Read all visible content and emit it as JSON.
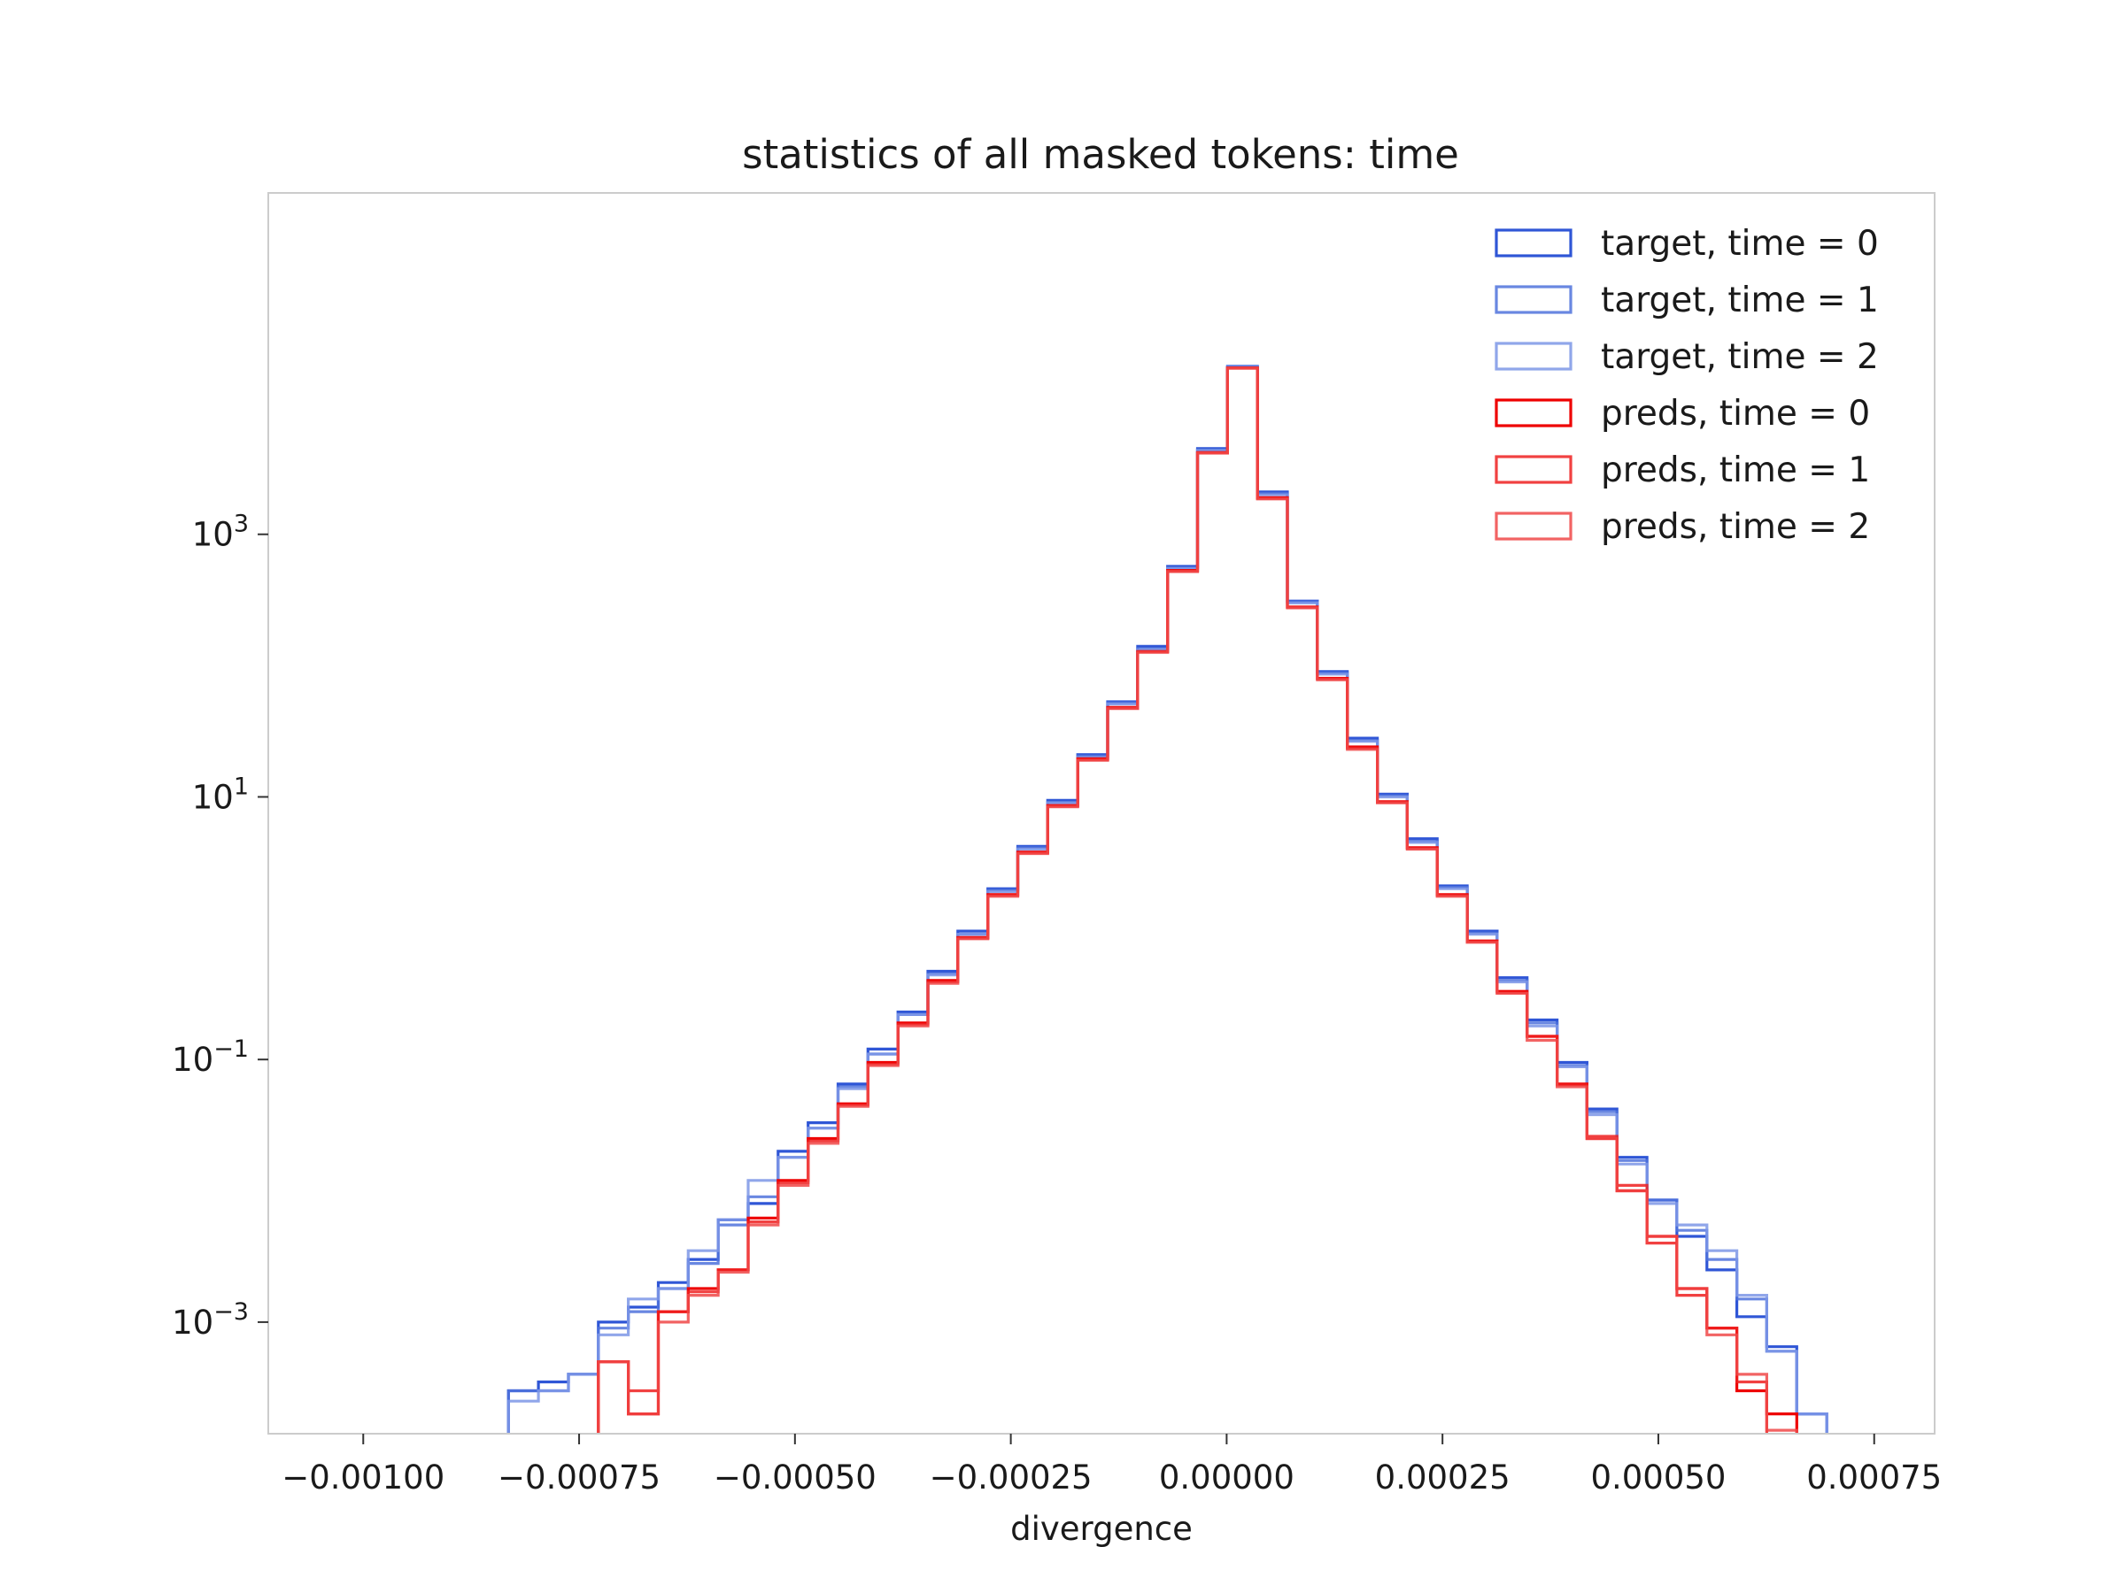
{
  "chart_data": {
    "type": "histogram",
    "title": "statistics of all masked tokens: time",
    "xlabel": "divergence",
    "ylabel": "",
    "yscale": "log",
    "xlim": [
      -0.00111,
      0.00082
    ],
    "ylim_log10": [
      -3.85,
      5.6
    ],
    "grid": false,
    "legend_position": "top-right",
    "x_ticks": [
      {
        "value": -0.001,
        "label": "−0.00100"
      },
      {
        "value": -0.00075,
        "label": "−0.00075"
      },
      {
        "value": -0.0005,
        "label": "−0.00050"
      },
      {
        "value": -0.00025,
        "label": "−0.00025"
      },
      {
        "value": 0,
        "label": "0.00000"
      },
      {
        "value": 0.00025,
        "label": "0.00025"
      },
      {
        "value": 0.0005,
        "label": "0.00050"
      },
      {
        "value": 0.00075,
        "label": "0.00075"
      }
    ],
    "y_ticks": [
      {
        "exp": 3,
        "base": "10",
        "sup": "3"
      },
      {
        "exp": 1,
        "base": "10",
        "sup": "1"
      },
      {
        "exp": -1,
        "base": "10",
        "sup": "−1"
      },
      {
        "exp": -3,
        "base": "10",
        "sup": "−3"
      }
    ],
    "bin_start": -0.00104,
    "bin_width": 3.47e-05,
    "series": [
      {
        "name": "target, time = 0",
        "color": "#2f56d6",
        "alpha": 1.0,
        "values": [
          5e-05,
          0,
          0,
          5e-05,
          5e-05,
          5e-05,
          0.0003,
          0.00035,
          0.0004,
          0.001,
          0.0013,
          0.002,
          0.003,
          0.006,
          0.008,
          0.02,
          0.033,
          0.065,
          0.12,
          0.23,
          0.47,
          0.95,
          2.0,
          4.2,
          9.4,
          21,
          53,
          140,
          570,
          4500,
          19000,
          2100,
          310,
          90,
          28,
          10.5,
          4.8,
          2.1,
          0.95,
          0.42,
          0.2,
          0.095,
          0.042,
          0.018,
          0.0085,
          0.0045,
          0.0025,
          0.0011,
          0.00065,
          0.0002,
          0
        ]
      },
      {
        "name": "target, time = 1",
        "color": "#4f72dc",
        "alpha": 0.85,
        "values": [
          0,
          0,
          5e-05,
          5e-05,
          5e-05,
          5e-05,
          0.0003,
          0.0003,
          0.0004,
          0.0009,
          0.0012,
          0.0018,
          0.0028,
          0.0055,
          0.009,
          0.018,
          0.03,
          0.062,
          0.11,
          0.22,
          0.45,
          0.9,
          1.95,
          4.1,
          9.1,
          20.5,
          52,
          135,
          555,
          4400,
          18800,
          2050,
          305,
          88,
          27,
          10.2,
          4.6,
          2.05,
          0.92,
          0.4,
          0.19,
          0.09,
          0.04,
          0.017,
          0.0085,
          0.005,
          0.003,
          0.0015,
          0.0006,
          0.0002,
          5e-05
        ]
      },
      {
        "name": "target, time = 2",
        "color": "#7c96e6",
        "alpha": 0.85,
        "values": [
          0,
          0,
          0.0001,
          5e-05,
          5e-05,
          5e-05,
          0.00025,
          0.0003,
          0.0004,
          0.0008,
          0.0015,
          0.0018,
          0.0035,
          0.006,
          0.012,
          0.018,
          0.03,
          0.06,
          0.11,
          0.22,
          0.44,
          0.9,
          1.9,
          4.0,
          9.0,
          20,
          51,
          132,
          550,
          4350,
          18700,
          2000,
          300,
          86,
          26.5,
          10,
          4.5,
          2.0,
          0.9,
          0.39,
          0.18,
          0.088,
          0.038,
          0.016,
          0.008,
          0.0055,
          0.0035,
          0.0016,
          0.0006,
          0.0002,
          0.0001
        ]
      },
      {
        "name": "preds, time = 0",
        "color": "#ee0000",
        "alpha": 1.0,
        "values": [
          0,
          0,
          0,
          0,
          5e-05,
          0.0001,
          0.0001,
          5e-05,
          0.0001,
          0.0005,
          0.0002,
          0.0012,
          0.0018,
          0.0025,
          0.0062,
          0.012,
          0.025,
          0.046,
          0.095,
          0.19,
          0.4,
          0.85,
          1.8,
          3.8,
          8.6,
          19.5,
          48,
          128,
          530,
          4200,
          18500,
          1900,
          280,
          80,
          24,
          9.2,
          4.1,
          1.8,
          0.8,
          0.33,
          0.15,
          0.065,
          0.025,
          0.01,
          0.0045,
          0.0018,
          0.0009,
          0.0003,
          0.0002,
          0,
          0
        ]
      },
      {
        "name": "preds, time = 1",
        "color": "#ee2020",
        "alpha": 0.85,
        "values": [
          0,
          0,
          0,
          0,
          0,
          0.0001,
          0.0001,
          5e-05,
          0.0001,
          0.0005,
          0.0003,
          0.0012,
          0.0017,
          0.0025,
          0.0058,
          0.0115,
          0.024,
          0.045,
          0.092,
          0.185,
          0.39,
          0.84,
          1.78,
          3.75,
          8.5,
          19.2,
          47.5,
          127,
          525,
          4180,
          18450,
          1880,
          278,
          79,
          23.5,
          9.1,
          4.05,
          1.78,
          0.79,
          0.32,
          0.15,
          0.064,
          0.026,
          0.011,
          0.004,
          0.0016,
          0.0009,
          0.00035,
          0.0001,
          5e-05,
          0
        ]
      },
      {
        "name": "preds, time = 2",
        "color": "#f04848",
        "alpha": 0.85,
        "values": [
          0,
          0,
          0,
          0,
          0,
          0.0001,
          0.0001,
          5e-05,
          0.0001,
          0.0005,
          0.0002,
          0.001,
          0.0016,
          0.0024,
          0.0055,
          0.011,
          0.023,
          0.044,
          0.09,
          0.18,
          0.38,
          0.83,
          1.75,
          3.7,
          8.4,
          19,
          47,
          126,
          520,
          4150,
          18400,
          1860,
          275,
          78,
          23,
          9,
          4.0,
          1.75,
          0.78,
          0.32,
          0.14,
          0.062,
          0.025,
          0.01,
          0.0045,
          0.0018,
          0.0008,
          0.0004,
          0.00015,
          0.0001,
          0
        ]
      }
    ]
  }
}
